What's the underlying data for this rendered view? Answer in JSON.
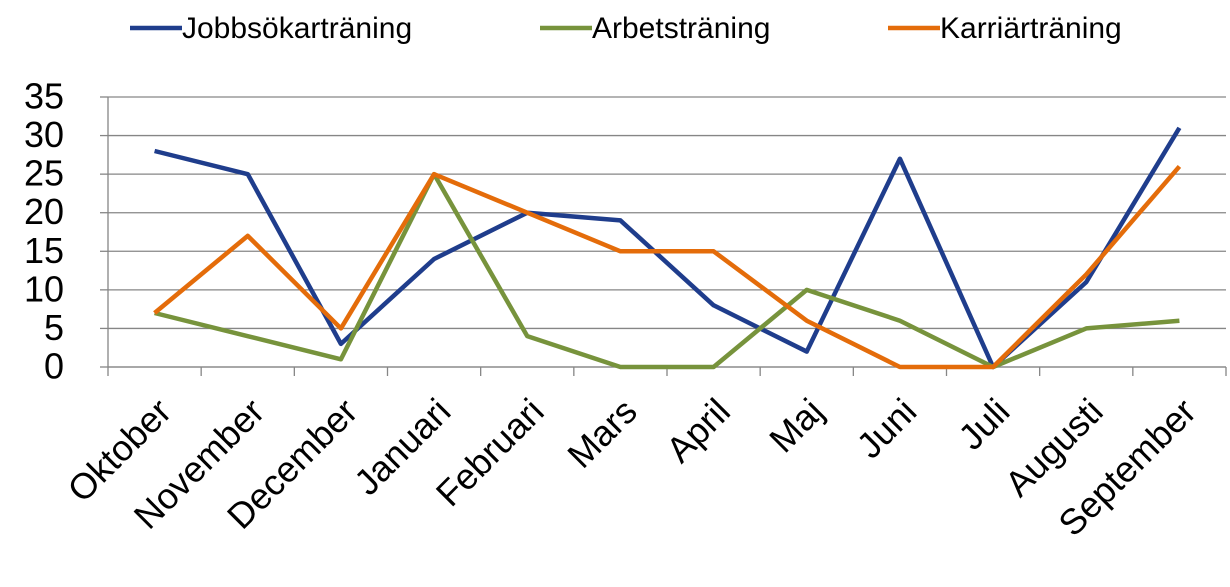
{
  "chart_data": {
    "type": "line",
    "categories": [
      "Oktober",
      "November",
      "December",
      "Januari",
      "Februari",
      "Mars",
      "April",
      "Maj",
      "Juni",
      "Juli",
      "Augusti",
      "September"
    ],
    "series": [
      {
        "name": "Jobbsökarträning",
        "color": "#1f3d8c",
        "values": [
          28,
          25,
          3,
          14,
          20,
          19,
          8,
          2,
          27,
          0,
          11,
          31
        ]
      },
      {
        "name": "Arbetsträning",
        "color": "#77933c",
        "values": [
          7,
          4,
          1,
          25,
          4,
          0,
          0,
          10,
          6,
          0,
          5,
          6
        ]
      },
      {
        "name": "Karriärträning",
        "color": "#e46c0a",
        "values": [
          7,
          17,
          5,
          25,
          20,
          15,
          15,
          6,
          0,
          0,
          12,
          26
        ]
      }
    ],
    "ylim": [
      0,
      35
    ],
    "yticks": [
      0,
      5,
      10,
      15,
      20,
      25,
      30,
      35
    ],
    "grid": true,
    "legend": "top"
  }
}
